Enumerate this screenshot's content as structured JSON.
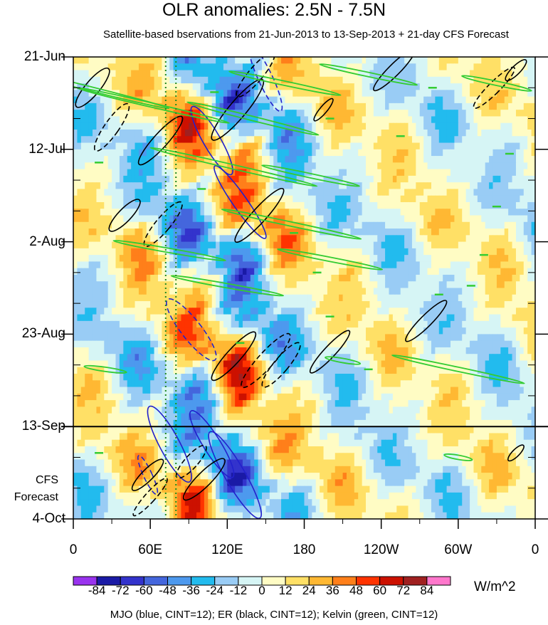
{
  "chart_data": {
    "type": "heatmap",
    "title": "OLR anomalies: 2.5N - 7.5N",
    "subtitle": "Satellite-based bservations from 21-Jun-2013 to 13-Sep-2013 + 21-day CFS Forecast",
    "x_tick_labels": [
      "0",
      "60E",
      "120E",
      "180",
      "120W",
      "60W",
      "0"
    ],
    "x_tick_degrees_east": [
      0,
      60,
      120,
      180,
      240,
      300,
      360
    ],
    "y_tick_labels": [
      "21-Jun",
      "12-Jul",
      "2-Aug",
      "23-Aug",
      "13-Sep",
      "4-Oct"
    ],
    "y_tick_days": [
      0,
      21,
      42,
      63,
      84,
      105
    ],
    "observation_end_day": 84,
    "forecast_label": [
      "CFS",
      "Forecast"
    ],
    "colorbar": {
      "levels": [
        "-84",
        "-72",
        "-60",
        "-48",
        "-36",
        "-24",
        "-12",
        "0",
        "12",
        "24",
        "36",
        "48",
        "60",
        "72",
        "84"
      ],
      "colors": [
        "#9933ee",
        "#1a1aa6",
        "#3333cc",
        "#4466dd",
        "#4d99ee",
        "#22bbee",
        "#99ccf5",
        "#d6f5f5",
        "#fffcc4",
        "#ffe066",
        "#ffb833",
        "#ff7f1a",
        "#ff3300",
        "#cc1100",
        "#a02020",
        "#ff77cc"
      ],
      "units": "W/m^2"
    },
    "footnote": "MJO (blue, CINT=12); ER (black, CINT=12); Kelvin (green, CINT=12)",
    "contour_colors": {
      "mjo": "#2222cc",
      "er": "#000000",
      "kelvin": "#33cc33"
    },
    "reference_lines_degrees_east": [
      72,
      80
    ]
  }
}
